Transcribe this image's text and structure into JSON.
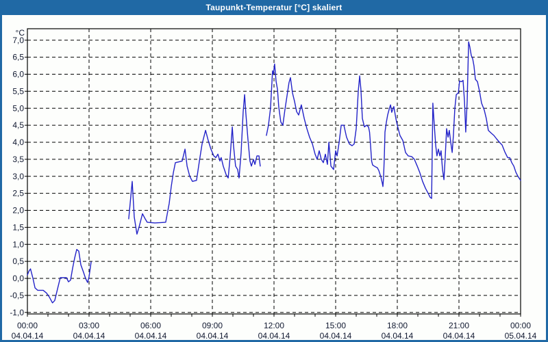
{
  "window": {
    "title": "Taupunkt-Temperatur [°C] skaliert"
  },
  "colors": {
    "titlebar": "#2069A5",
    "frame_border": "#2069A5",
    "background": "#FDFEFC",
    "grid": "#000000",
    "axis_text": "#101830",
    "title_text": "#FFFFFF",
    "line": "#2222C8"
  },
  "chart_data": {
    "type": "line",
    "title": "Taupunkt-Temperatur [°C] skaliert",
    "ylabel": "°C",
    "xlabel": "",
    "ylim": [
      -1.0,
      7.0
    ],
    "y_tick_step": 0.5,
    "y_tick_labels": [
      "7,0",
      "6,5",
      "6,0",
      "5,5",
      "5,0",
      "4,5",
      "4,0",
      "3,5",
      "3,0",
      "2,5",
      "2,0",
      "1,5",
      "1,0",
      "0,5",
      "0,0",
      "-0,5",
      "-1,0"
    ],
    "grid": "dashed",
    "legend": "none",
    "x_axis": {
      "range_hours": [
        0,
        24
      ],
      "minor_tick_hours": 1,
      "major_gridline_hours": 3,
      "ticks": [
        {
          "hours": 0,
          "time": "00:00",
          "date": "04.04.14"
        },
        {
          "hours": 3,
          "time": "03:00",
          "date": "04.04.14"
        },
        {
          "hours": 6,
          "time": "06:00",
          "date": "04.04.14"
        },
        {
          "hours": 9,
          "time": "09:00",
          "date": "04.04.14"
        },
        {
          "hours": 12,
          "time": "12:00",
          "date": "04.04.14"
        },
        {
          "hours": 15,
          "time": "15:00",
          "date": "04.04.14"
        },
        {
          "hours": 18,
          "time": "18:00",
          "date": "04.04.14"
        },
        {
          "hours": 21,
          "time": "21:00",
          "date": "04.04.14"
        },
        {
          "hours": 24,
          "time": "00:00",
          "date": "05.04.14"
        }
      ]
    },
    "series": [
      {
        "name": "Taupunkt-Temperatur",
        "color": "#2222C8",
        "segments": [
          [
            [
              0.0,
              0.1
            ],
            [
              0.08,
              0.22
            ],
            [
              0.15,
              0.28
            ],
            [
              0.27,
              0.0
            ],
            [
              0.37,
              -0.28
            ],
            [
              0.5,
              -0.35
            ],
            [
              0.77,
              -0.35
            ],
            [
              0.93,
              -0.43
            ],
            [
              1.07,
              -0.55
            ],
            [
              1.22,
              -0.72
            ],
            [
              1.33,
              -0.65
            ],
            [
              1.47,
              -0.3
            ],
            [
              1.6,
              0.02
            ],
            [
              1.9,
              0.02
            ],
            [
              2.0,
              -0.1
            ],
            [
              2.1,
              -0.05
            ],
            [
              2.2,
              0.3
            ],
            [
              2.3,
              0.6
            ],
            [
              2.4,
              0.85
            ],
            [
              2.5,
              0.8
            ],
            [
              2.6,
              0.4
            ],
            [
              2.73,
              0.18
            ],
            [
              2.83,
              0.0
            ],
            [
              2.93,
              -0.12
            ],
            [
              3.0,
              0.05
            ],
            [
              3.07,
              0.35
            ],
            [
              3.1,
              0.48
            ]
          ],
          [
            [
              4.93,
              1.75
            ],
            [
              5.0,
              2.2
            ],
            [
              5.1,
              2.85
            ],
            [
              5.2,
              1.8
            ],
            [
              5.33,
              1.3
            ],
            [
              5.43,
              1.5
            ],
            [
              5.6,
              1.9
            ],
            [
              5.73,
              1.75
            ],
            [
              5.83,
              1.65
            ],
            [
              6.2,
              1.63
            ],
            [
              6.5,
              1.64
            ],
            [
              6.73,
              1.65
            ],
            [
              6.9,
              2.2
            ],
            [
              7.0,
              2.7
            ],
            [
              7.1,
              3.1
            ],
            [
              7.2,
              3.4
            ],
            [
              7.4,
              3.43
            ],
            [
              7.53,
              3.45
            ],
            [
              7.67,
              3.8
            ],
            [
              7.77,
              3.3
            ],
            [
              7.9,
              3.0
            ],
            [
              8.03,
              2.85
            ],
            [
              8.23,
              2.88
            ],
            [
              8.37,
              3.45
            ],
            [
              8.5,
              3.95
            ],
            [
              8.67,
              4.35
            ],
            [
              8.8,
              4.05
            ],
            [
              8.93,
              3.8
            ],
            [
              9.07,
              3.6
            ],
            [
              9.17,
              3.55
            ],
            [
              9.27,
              3.65
            ],
            [
              9.37,
              3.45
            ],
            [
              9.43,
              3.55
            ],
            [
              9.53,
              3.3
            ],
            [
              9.67,
              3.05
            ],
            [
              9.77,
              2.95
            ],
            [
              9.87,
              3.6
            ],
            [
              9.97,
              4.45
            ],
            [
              10.03,
              3.9
            ],
            [
              10.13,
              3.3
            ],
            [
              10.23,
              3.2
            ],
            [
              10.3,
              2.95
            ],
            [
              10.4,
              3.7
            ],
            [
              10.5,
              4.9
            ],
            [
              10.57,
              5.4
            ],
            [
              10.63,
              4.85
            ],
            [
              10.73,
              4.1
            ],
            [
              10.83,
              3.45
            ],
            [
              10.9,
              3.3
            ],
            [
              11.0,
              3.5
            ],
            [
              11.07,
              3.35
            ],
            [
              11.17,
              3.6
            ],
            [
              11.27,
              3.6
            ],
            [
              11.33,
              3.3
            ]
          ],
          [
            [
              11.63,
              4.2
            ],
            [
              11.73,
              4.5
            ],
            [
              11.83,
              5.0
            ],
            [
              11.93,
              6.1
            ],
            [
              11.97,
              6.0
            ],
            [
              12.03,
              6.3
            ],
            [
              12.1,
              5.8
            ],
            [
              12.17,
              5.55
            ],
            [
              12.23,
              5.05
            ],
            [
              12.33,
              4.6
            ],
            [
              12.43,
              4.5
            ],
            [
              12.53,
              4.95
            ],
            [
              12.63,
              5.35
            ],
            [
              12.73,
              5.75
            ],
            [
              12.8,
              5.9
            ],
            [
              12.9,
              5.45
            ],
            [
              13.0,
              5.2
            ],
            [
              13.1,
              4.9
            ],
            [
              13.2,
              4.8
            ],
            [
              13.33,
              5.1
            ],
            [
              13.47,
              4.7
            ],
            [
              13.6,
              4.4
            ],
            [
              13.73,
              4.15
            ],
            [
              13.87,
              3.95
            ],
            [
              14.0,
              3.65
            ],
            [
              14.1,
              3.5
            ],
            [
              14.2,
              3.75
            ],
            [
              14.3,
              3.5
            ],
            [
              14.4,
              3.4
            ],
            [
              14.5,
              3.65
            ],
            [
              14.6,
              3.35
            ],
            [
              14.67,
              4.0
            ],
            [
              14.77,
              3.3
            ],
            [
              14.9,
              3.2
            ],
            [
              15.0,
              3.75
            ],
            [
              15.07,
              3.6
            ],
            [
              15.17,
              4.0
            ],
            [
              15.27,
              4.5
            ],
            [
              15.4,
              4.5
            ],
            [
              15.53,
              4.15
            ],
            [
              15.67,
              3.95
            ],
            [
              15.8,
              3.9
            ],
            [
              15.9,
              3.95
            ],
            [
              16.0,
              4.4
            ],
            [
              16.1,
              5.5
            ],
            [
              16.17,
              5.95
            ],
            [
              16.23,
              5.55
            ],
            [
              16.3,
              4.7
            ],
            [
              16.4,
              4.45
            ],
            [
              16.5,
              4.5
            ],
            [
              16.6,
              4.45
            ],
            [
              16.65,
              4.3
            ],
            [
              16.7,
              3.9
            ],
            [
              16.75,
              3.45
            ],
            [
              16.8,
              3.33
            ],
            [
              16.93,
              3.28
            ],
            [
              17.03,
              3.25
            ],
            [
              17.1,
              3.17
            ],
            [
              17.2,
              2.98
            ],
            [
              17.27,
              2.8
            ],
            [
              17.3,
              2.7
            ],
            [
              17.33,
              2.95
            ],
            [
              17.37,
              3.6
            ],
            [
              17.4,
              4.3
            ],
            [
              17.47,
              4.6
            ],
            [
              17.53,
              4.8
            ],
            [
              17.6,
              4.96
            ],
            [
              17.67,
              5.1
            ],
            [
              17.73,
              4.88
            ],
            [
              17.83,
              5.05
            ],
            [
              17.93,
              4.7
            ],
            [
              18.0,
              4.5
            ],
            [
              18.13,
              4.2
            ],
            [
              18.27,
              4.05
            ],
            [
              18.4,
              3.7
            ],
            [
              18.53,
              3.6
            ],
            [
              18.7,
              3.58
            ],
            [
              18.83,
              3.5
            ],
            [
              18.97,
              3.3
            ],
            [
              19.1,
              3.1
            ],
            [
              19.23,
              2.85
            ],
            [
              19.37,
              2.65
            ],
            [
              19.5,
              2.5
            ],
            [
              19.6,
              2.38
            ],
            [
              19.67,
              2.35
            ],
            [
              19.73,
              5.15
            ],
            [
              19.8,
              4.5
            ],
            [
              19.87,
              3.9
            ],
            [
              19.93,
              3.6
            ],
            [
              20.0,
              3.8
            ],
            [
              20.07,
              3.6
            ],
            [
              20.13,
              3.75
            ],
            [
              20.2,
              3.2
            ],
            [
              20.27,
              2.9
            ],
            [
              20.33,
              3.55
            ],
            [
              20.4,
              4.4
            ],
            [
              20.47,
              4.15
            ],
            [
              20.53,
              4.35
            ],
            [
              20.6,
              4.0
            ],
            [
              20.67,
              3.7
            ],
            [
              20.73,
              4.2
            ],
            [
              20.8,
              5.0
            ],
            [
              20.87,
              5.4
            ],
            [
              20.97,
              5.45
            ],
            [
              21.03,
              5.8
            ],
            [
              21.13,
              5.78
            ],
            [
              21.2,
              5.82
            ],
            [
              21.27,
              5.2
            ],
            [
              21.33,
              4.3
            ],
            [
              21.4,
              5.2
            ],
            [
              21.47,
              6.95
            ],
            [
              21.53,
              6.8
            ],
            [
              21.6,
              6.55
            ],
            [
              21.67,
              6.45
            ],
            [
              21.73,
              6.25
            ],
            [
              21.8,
              5.85
            ],
            [
              21.9,
              5.78
            ],
            [
              22.0,
              5.5
            ],
            [
              22.1,
              5.15
            ],
            [
              22.23,
              4.95
            ],
            [
              22.33,
              4.7
            ],
            [
              22.43,
              4.35
            ],
            [
              22.57,
              4.27
            ],
            [
              22.7,
              4.2
            ],
            [
              22.83,
              4.1
            ],
            [
              22.97,
              4.0
            ],
            [
              23.1,
              3.92
            ],
            [
              23.23,
              3.72
            ],
            [
              23.37,
              3.55
            ],
            [
              23.47,
              3.55
            ],
            [
              23.57,
              3.4
            ],
            [
              23.67,
              3.3
            ],
            [
              23.77,
              3.12
            ],
            [
              23.87,
              3.0
            ],
            [
              24.0,
              2.88
            ]
          ]
        ]
      }
    ]
  }
}
